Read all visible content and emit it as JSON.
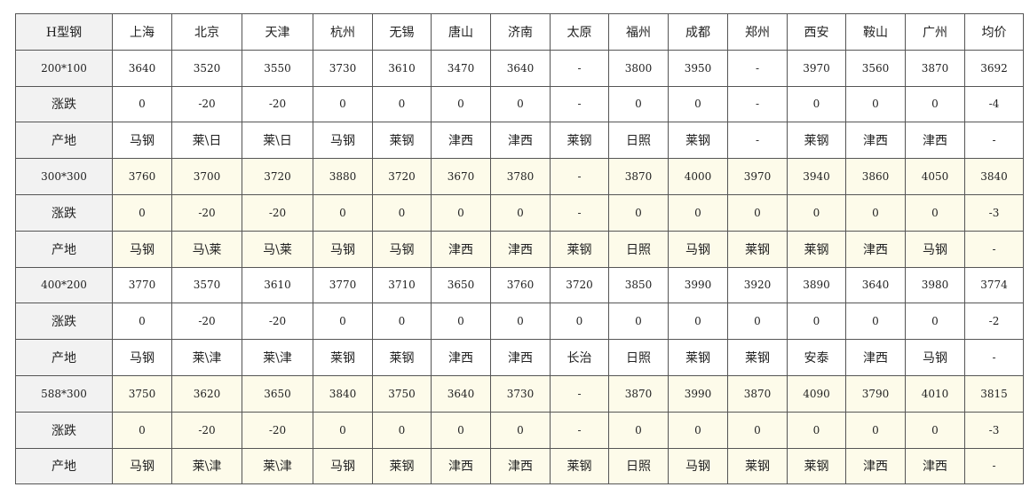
{
  "table": {
    "header": [
      "H型钢",
      "上海",
      "北京",
      "天津",
      "杭州",
      "无锡",
      "唐山",
      "济南",
      "太原",
      "福州",
      "成都",
      "郑州",
      "西安",
      "鞍山",
      "广州",
      "均价"
    ],
    "rows": [
      [
        "200*100",
        "3640",
        "3520",
        "3550",
        "3730",
        "3610",
        "3470",
        "3640",
        "-",
        "3800",
        "3950",
        "-",
        "3970",
        "3560",
        "3870",
        "3692"
      ],
      [
        "涨跌",
        "0",
        "-20",
        "-20",
        "0",
        "0",
        "0",
        "0",
        "-",
        "0",
        "0",
        "-",
        "0",
        "0",
        "0",
        "-4"
      ],
      [
        "产地",
        "马钢",
        "莱\\日",
        "莱\\日",
        "马钢",
        "莱钢",
        "津西",
        "津西",
        "莱钢",
        "日照",
        "莱钢",
        "-",
        "莱钢",
        "津西",
        "津西",
        "-"
      ],
      [
        "300*300",
        "3760",
        "3700",
        "3720",
        "3880",
        "3720",
        "3670",
        "3780",
        "-",
        "3870",
        "4000",
        "3970",
        "3940",
        "3860",
        "4050",
        "3840"
      ],
      [
        "涨跌",
        "0",
        "-20",
        "-20",
        "0",
        "0",
        "0",
        "0",
        "-",
        "0",
        "0",
        "0",
        "0",
        "0",
        "0",
        "-3"
      ],
      [
        "产地",
        "马钢",
        "马\\莱",
        "马\\莱",
        "马钢",
        "马钢",
        "津西",
        "津西",
        "莱钢",
        "日照",
        "马钢",
        "莱钢",
        "莱钢",
        "津西",
        "马钢",
        "-"
      ],
      [
        "400*200",
        "3770",
        "3570",
        "3610",
        "3770",
        "3710",
        "3650",
        "3760",
        "3720",
        "3850",
        "3990",
        "3920",
        "3890",
        "3640",
        "3980",
        "3774"
      ],
      [
        "涨跌",
        "0",
        "-20",
        "-20",
        "0",
        "0",
        "0",
        "0",
        "0",
        "0",
        "0",
        "0",
        "0",
        "0",
        "0",
        "-2"
      ],
      [
        "产地",
        "马钢",
        "莱\\津",
        "莱\\津",
        "莱钢",
        "莱钢",
        "津西",
        "津西",
        "长治",
        "日照",
        "莱钢",
        "莱钢",
        "安泰",
        "津西",
        "马钢",
        "-"
      ],
      [
        "588*300",
        "3750",
        "3620",
        "3650",
        "3840",
        "3750",
        "3640",
        "3730",
        "-",
        "3870",
        "3990",
        "3870",
        "4090",
        "3790",
        "4010",
        "3815"
      ],
      [
        "涨跌",
        "0",
        "-20",
        "-20",
        "0",
        "0",
        "0",
        "0",
        "-",
        "0",
        "0",
        "0",
        "0",
        "0",
        "0",
        "-3"
      ],
      [
        "产地",
        "马钢",
        "莱\\津",
        "莱\\津",
        "马钢",
        "莱钢",
        "津西",
        "津西",
        "莱钢",
        "日照",
        "马钢",
        "莱钢",
        "莱钢",
        "津西",
        "津西",
        "-"
      ]
    ]
  }
}
